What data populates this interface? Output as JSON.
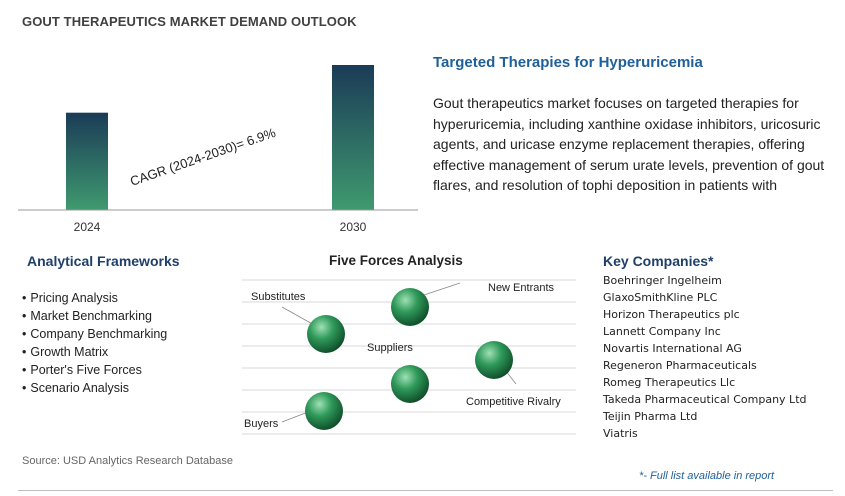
{
  "title": "GOUT THERAPEUTICS MARKET DEMAND OUTLOOK",
  "chart_data": {
    "type": "bar",
    "categories": [
      "2024",
      "2030"
    ],
    "values": [
      1.0,
      1.49
    ],
    "annotation": "CAGR (2024-2030)=   6.9%",
    "colors": {
      "bar_top": "#1b3b57",
      "bar_bottom": "#3f9a6f",
      "axis": "#999999"
    }
  },
  "subheading": "Targeted Therapies for Hyperuricemia",
  "description": "Gout therapeutics market focuses on targeted therapies for hyperuricemia, including xanthine oxidase inhibitors, uricosuric agents, and uricase enzyme replacement therapies, offering effective management of serum urate levels, prevention of gout flares, and resolution of tophi deposition in patients with",
  "frameworks": {
    "title": "Analytical Frameworks",
    "items": [
      "Pricing Analysis",
      "Market Benchmarking",
      "Company Benchmarking",
      "Growth Matrix",
      "Porter's Five Forces",
      "Scenario Analysis"
    ]
  },
  "five_forces": {
    "title": "Five Forces Analysis",
    "labels": {
      "substitutes": "Substitutes",
      "new_entrants": "New Entrants",
      "suppliers": "Suppliers",
      "competitive_rivalry": "Competitive Rivalry",
      "buyers": "Buyers"
    },
    "colors": {
      "sphere_light": "#9fe0b4",
      "sphere_mid": "#2f9a5a",
      "sphere_dark": "#0f4d2a",
      "lines": "#d9d9d9"
    }
  },
  "key_companies": {
    "title": "Key Companies*",
    "items": [
      "Boehringer Ingelheim",
      "GlaxoSmithKline PLC",
      "Horizon Therapeutics plc",
      "Lannett Company Inc",
      "Novartis International AG",
      "Regeneron Pharmaceuticals",
      "Romeg Therapeutics Llc",
      "Takeda Pharmaceutical Company Ltd",
      "Teijin Pharma Ltd",
      "Viatris"
    ],
    "note": "*- Full list available in report"
  },
  "source": "Source: USD Analytics Research Database"
}
